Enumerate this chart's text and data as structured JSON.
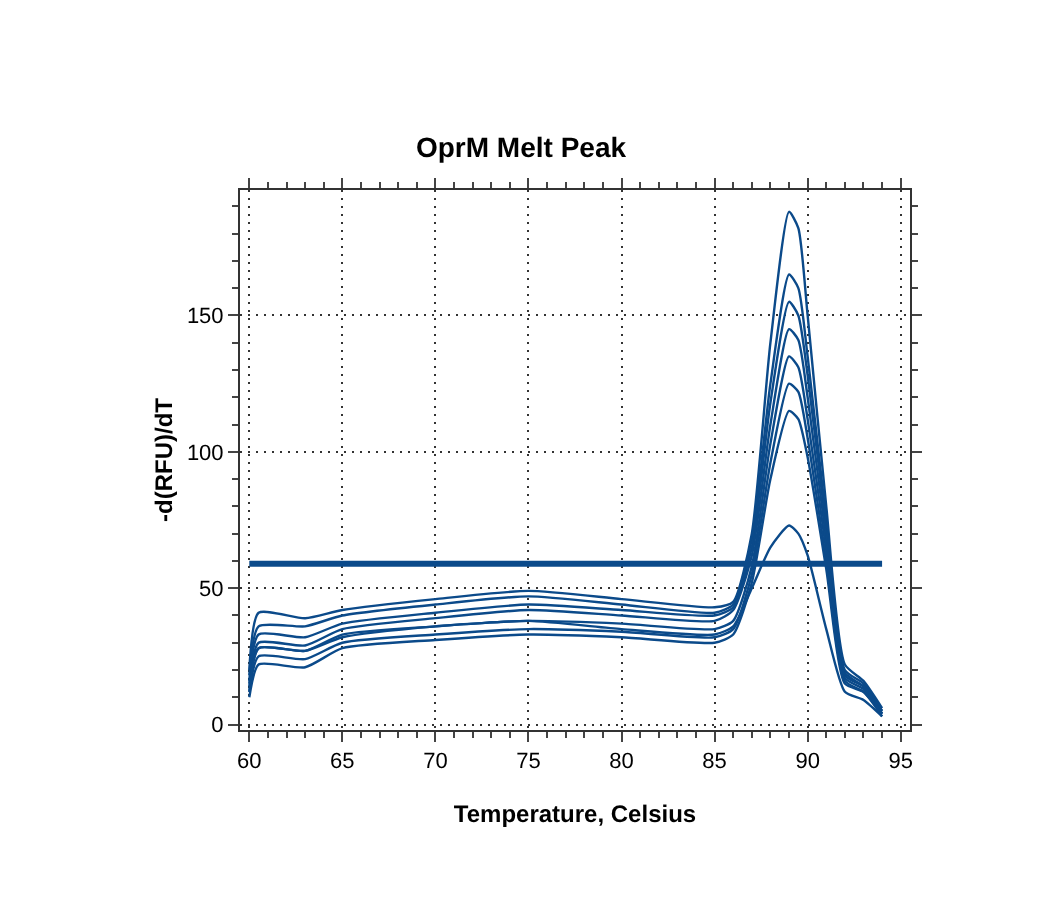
{
  "chart_data": {
    "type": "line",
    "title": "OprM Melt Peak",
    "xlabel": "Temperature, Celsius",
    "ylabel": "-d(RFU)/dT",
    "x": [
      60,
      60.5,
      63,
      65,
      70,
      75,
      80,
      85,
      86,
      87,
      88,
      89,
      89.5,
      90,
      91,
      92,
      93,
      94
    ],
    "series": [
      {
        "color": "#0b4a8a",
        "values": [
          20,
          41,
          39,
          42,
          46,
          49,
          46,
          43,
          45,
          70,
          140,
          188,
          182,
          150,
          80,
          22,
          16,
          6
        ]
      },
      {
        "color": "#0b4a8a",
        "values": [
          18,
          36,
          36,
          40,
          44,
          47,
          44,
          41,
          44,
          68,
          125,
          165,
          160,
          135,
          75,
          20,
          15,
          5
        ]
      },
      {
        "color": "#0b4a8a",
        "values": [
          16,
          33,
          32,
          37,
          41,
          44,
          42,
          40,
          43,
          65,
          118,
          155,
          150,
          128,
          72,
          19,
          14,
          5
        ]
      },
      {
        "color": "#0b4a8a",
        "values": [
          15,
          30,
          29,
          35,
          39,
          42,
          40,
          38,
          42,
          62,
          110,
          145,
          141,
          120,
          68,
          18,
          14,
          4
        ]
      },
      {
        "color": "#0b4a8a",
        "values": [
          14,
          28,
          27,
          32,
          36,
          38,
          37,
          35,
          38,
          58,
          103,
          135,
          131,
          112,
          64,
          17,
          13,
          4
        ]
      },
      {
        "color": "#0b4a8a",
        "values": [
          12,
          25,
          24,
          30,
          33,
          35,
          34,
          32,
          35,
          55,
          96,
          125,
          122,
          105,
          60,
          16,
          12,
          4
        ]
      },
      {
        "color": "#0b4a8a",
        "values": [
          10,
          22,
          21,
          28,
          31,
          33,
          32,
          30,
          33,
          52,
          90,
          115,
          112,
          98,
          57,
          15,
          12,
          3
        ]
      },
      {
        "color": "#0b4a8a",
        "values": [
          12,
          28,
          27,
          33,
          36,
          38,
          35,
          33,
          36,
          50,
          65,
          73,
          70,
          62,
          35,
          12,
          9,
          3
        ]
      }
    ],
    "ref_lines": [
      {
        "axis": "y",
        "value": 59,
        "color": "#0b4a8a"
      }
    ],
    "xlim": [
      59.5,
      95.5
    ],
    "ylim": [
      -2,
      196
    ],
    "xticks": [
      60,
      65,
      70,
      75,
      80,
      85,
      90,
      95
    ],
    "yticks": [
      0,
      50,
      100,
      150
    ],
    "grid": true,
    "marker": "none",
    "line_style": "solid"
  }
}
